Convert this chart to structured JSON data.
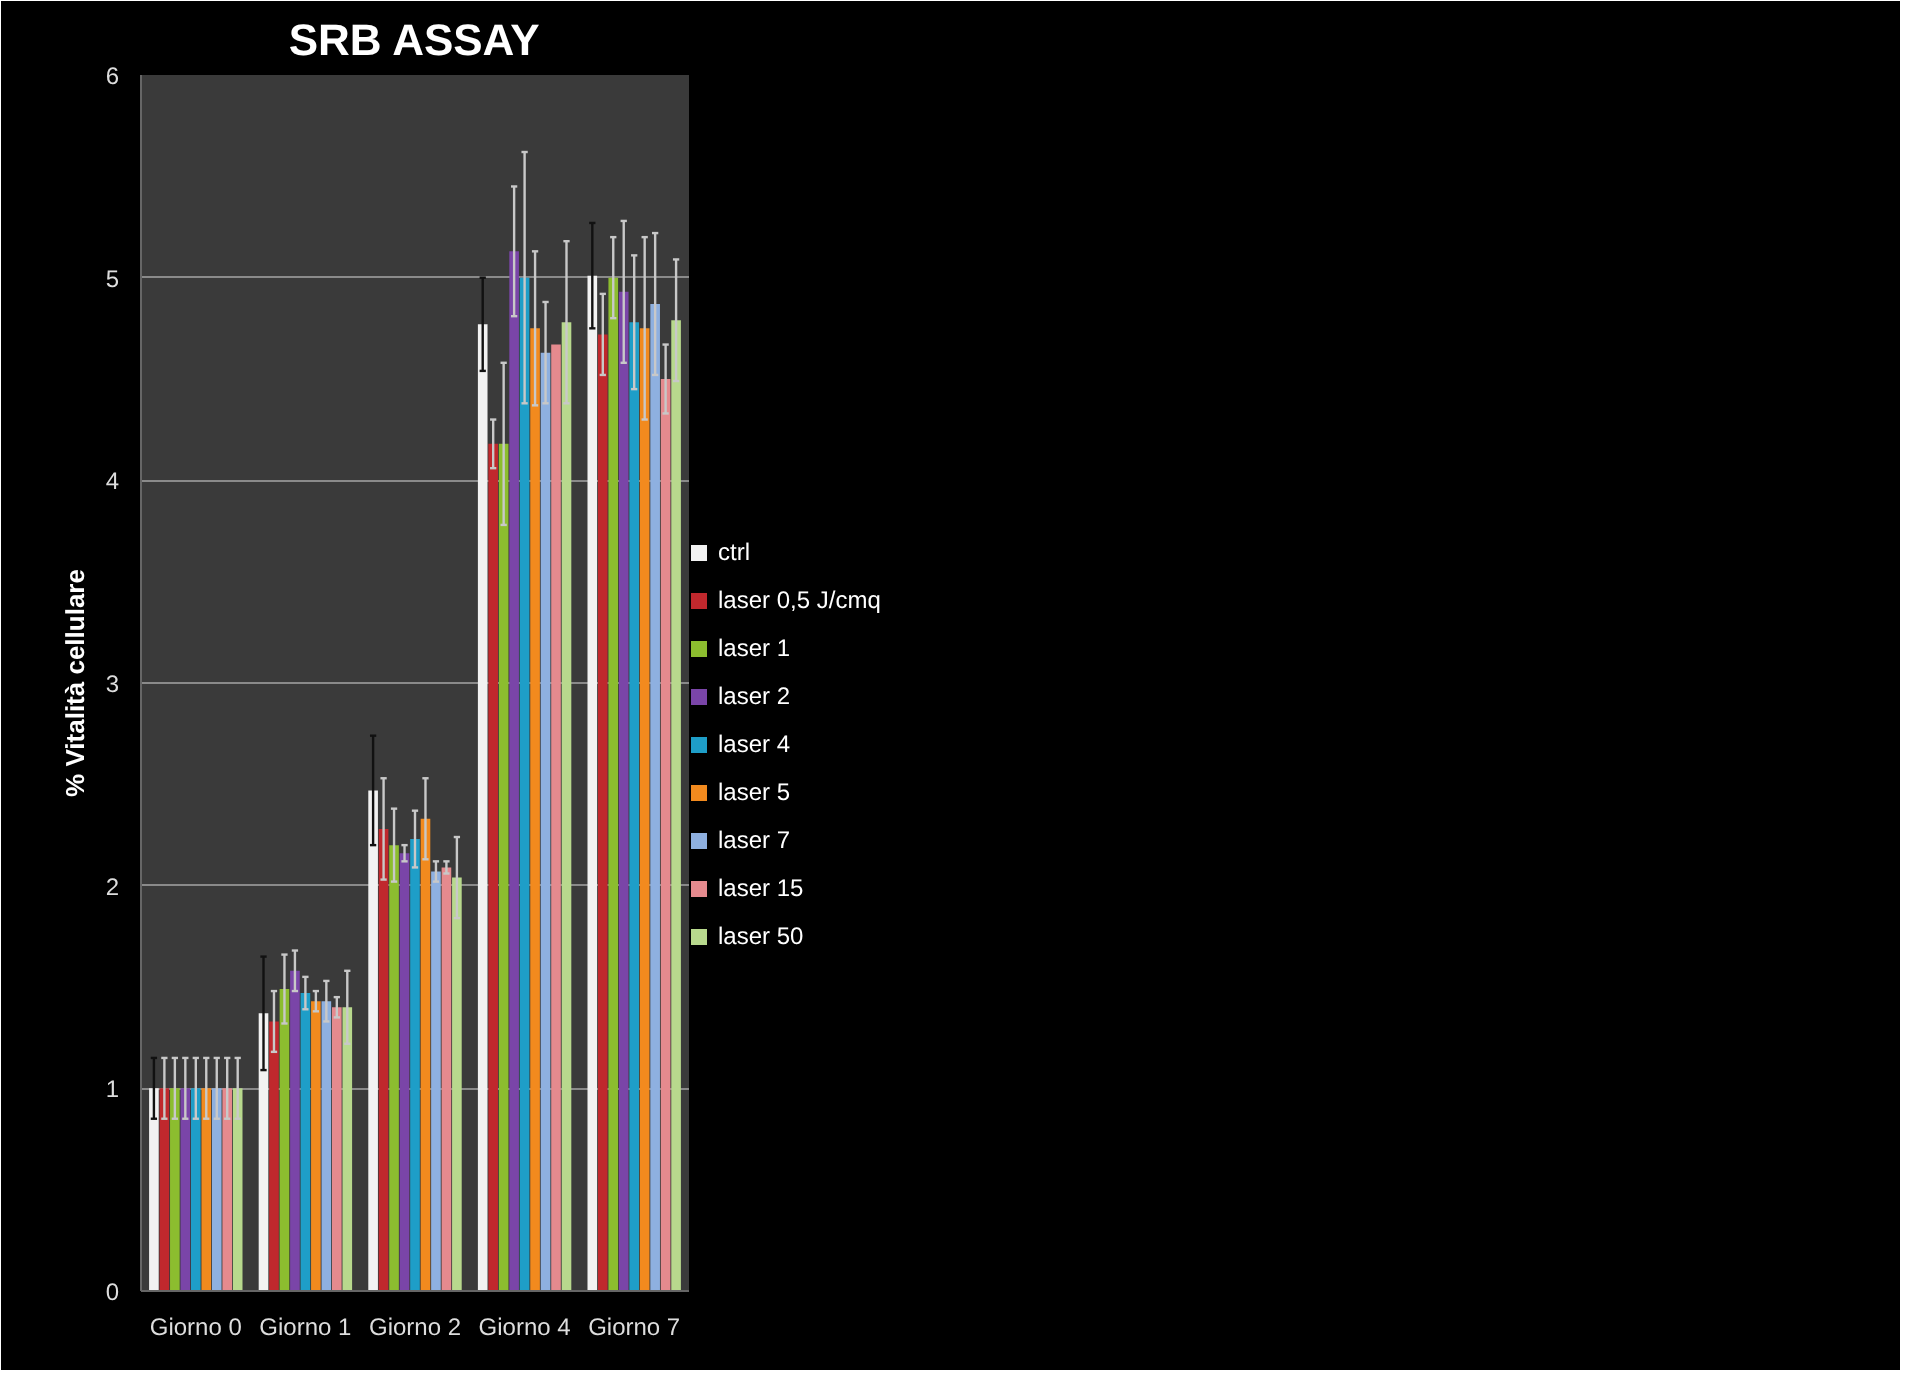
{
  "chart_data": {
    "type": "bar",
    "title": "SRB ASSAY",
    "ylabel": "% Vitalità cellulare",
    "categories": [
      "Giorno 0",
      "Giorno 1",
      "Giorno 2",
      "Giorno 4",
      "Giorno 7"
    ],
    "ylim": [
      0,
      6
    ],
    "yticks": [
      0,
      1,
      2,
      3,
      4,
      5,
      6
    ],
    "grid": "y",
    "legend": "right",
    "series": [
      {
        "name": "ctrl",
        "color": "#f2f2f2",
        "values": [
          1.0,
          1.37,
          2.47,
          4.77,
          5.01
        ],
        "errors": [
          0.15,
          0.28,
          0.27,
          0.23,
          0.26
        ]
      },
      {
        "name": "laser 0,5 J/cmq",
        "color": "#c0282d",
        "values": [
          1.0,
          1.33,
          2.28,
          4.18,
          4.72
        ],
        "errors": [
          0.15,
          0.15,
          0.25,
          0.12,
          0.2
        ]
      },
      {
        "name": "laser 1",
        "color": "#8cbd2f",
        "values": [
          1.0,
          1.49,
          2.2,
          4.18,
          5.0
        ],
        "errors": [
          0.15,
          0.17,
          0.18,
          0.4,
          0.2
        ]
      },
      {
        "name": "laser 2",
        "color": "#7a45a8",
        "values": [
          1.0,
          1.58,
          2.16,
          5.13,
          4.93
        ],
        "errors": [
          0.15,
          0.1,
          0.04,
          0.32,
          0.35
        ]
      },
      {
        "name": "laser 4",
        "color": "#1e9ec8",
        "values": [
          1.0,
          1.47,
          2.23,
          5.0,
          4.78
        ],
        "errors": [
          0.15,
          0.08,
          0.14,
          0.62,
          0.33
        ]
      },
      {
        "name": "laser 5",
        "color": "#f28a1e",
        "values": [
          1.0,
          1.43,
          2.33,
          4.75,
          4.75
        ],
        "errors": [
          0.15,
          0.05,
          0.2,
          0.38,
          0.45
        ]
      },
      {
        "name": "laser 7",
        "color": "#8eb0e0",
        "values": [
          1.0,
          1.43,
          2.07,
          4.63,
          4.87
        ],
        "errors": [
          0.15,
          0.1,
          0.05,
          0.25,
          0.35
        ]
      },
      {
        "name": "laser 15",
        "color": "#e58a8e",
        "values": [
          1.0,
          1.4,
          2.09,
          4.67,
          4.5
        ],
        "errors": [
          0.15,
          0.05,
          0.03,
          null,
          0.17
        ]
      },
      {
        "name": "laser 50",
        "color": "#b8d98d",
        "values": [
          1.0,
          1.4,
          2.04,
          4.78,
          4.79
        ],
        "errors": [
          0.15,
          0.18,
          0.2,
          0.4,
          0.3
        ]
      }
    ]
  }
}
